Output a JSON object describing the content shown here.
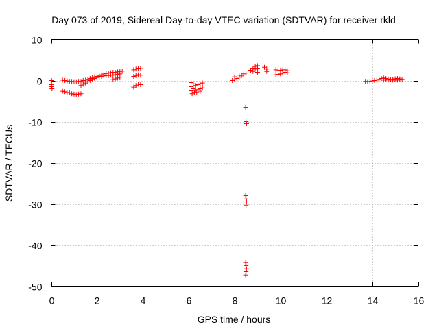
{
  "chart_data": {
    "type": "scatter",
    "title": "Day 073 of 2019, Sidereal Day-to-day VTEC variation (SDTVAR) for receiver rkld",
    "xlabel": "GPS time / hours",
    "ylabel": "SDTVAR / TECUs",
    "xlim": [
      0,
      16
    ],
    "ylim": [
      -50,
      10
    ],
    "xticks": [
      0,
      2,
      4,
      6,
      8,
      10,
      12,
      14,
      16
    ],
    "xtick_labels": [
      "0",
      "2",
      "4",
      "6",
      "8",
      "10",
      "12",
      "14",
      "16"
    ],
    "yticks": [
      10,
      0,
      -10,
      -20,
      -30,
      -40,
      -50
    ],
    "ytick_labels": [
      "10",
      "0",
      "-10",
      "-20",
      "-30",
      "-40",
      "-50"
    ],
    "grid": true,
    "marker": "plus",
    "color": "#ff0000",
    "series": [
      {
        "name": "SDTVAR",
        "points": [
          [
            0.02,
            0.0
          ],
          [
            0.02,
            -1.0
          ],
          [
            0.02,
            -1.5
          ],
          [
            0.04,
            -2.0
          ],
          [
            0.5,
            0.1
          ],
          [
            0.6,
            0.0
          ],
          [
            0.7,
            -0.1
          ],
          [
            0.8,
            -0.2
          ],
          [
            0.9,
            -0.2
          ],
          [
            1.0,
            -0.3
          ],
          [
            1.1,
            -0.3
          ],
          [
            1.2,
            -0.2
          ],
          [
            1.3,
            -0.2
          ],
          [
            1.4,
            0.0
          ],
          [
            1.5,
            0.1
          ],
          [
            1.6,
            0.3
          ],
          [
            1.7,
            0.5
          ],
          [
            1.8,
            0.7
          ],
          [
            1.9,
            0.9
          ],
          [
            2.0,
            1.0
          ],
          [
            2.1,
            1.2
          ],
          [
            2.2,
            1.4
          ],
          [
            2.3,
            1.6
          ],
          [
            2.4,
            1.7
          ],
          [
            2.5,
            1.8
          ],
          [
            2.6,
            1.9
          ],
          [
            2.7,
            2.0
          ],
          [
            2.8,
            2.0
          ],
          [
            2.9,
            2.1
          ],
          [
            3.0,
            2.2
          ],
          [
            3.1,
            2.3
          ],
          [
            0.5,
            -2.6
          ],
          [
            0.6,
            -2.7
          ],
          [
            0.7,
            -2.9
          ],
          [
            0.8,
            -3.0
          ],
          [
            0.9,
            -3.2
          ],
          [
            1.0,
            -3.3
          ],
          [
            1.1,
            -3.4
          ],
          [
            1.2,
            -3.3
          ],
          [
            1.3,
            -3.2
          ],
          [
            1.3,
            -1.2
          ],
          [
            1.4,
            -0.9
          ],
          [
            1.5,
            -0.6
          ],
          [
            1.6,
            -0.3
          ],
          [
            1.7,
            0.0
          ],
          [
            1.8,
            0.3
          ],
          [
            1.9,
            0.5
          ],
          [
            2.0,
            0.7
          ],
          [
            2.1,
            0.9
          ],
          [
            2.2,
            1.0
          ],
          [
            2.3,
            1.1
          ],
          [
            2.4,
            1.2
          ],
          [
            2.5,
            1.2
          ],
          [
            2.6,
            1.3
          ],
          [
            2.7,
            1.3
          ],
          [
            2.8,
            1.4
          ],
          [
            2.9,
            1.5
          ],
          [
            3.0,
            1.6
          ],
          [
            2.7,
            0.2
          ],
          [
            2.8,
            0.4
          ],
          [
            2.9,
            0.6
          ],
          [
            3.0,
            0.8
          ],
          [
            3.6,
            2.6
          ],
          [
            3.7,
            2.8
          ],
          [
            3.8,
            3.0
          ],
          [
            3.9,
            2.9
          ],
          [
            3.6,
            1.0
          ],
          [
            3.7,
            1.2
          ],
          [
            3.8,
            1.4
          ],
          [
            3.9,
            1.3
          ],
          [
            3.6,
            -1.6
          ],
          [
            3.7,
            -1.2
          ],
          [
            3.8,
            -0.9
          ],
          [
            3.9,
            -1.0
          ],
          [
            6.1,
            -0.5
          ],
          [
            6.1,
            -1.5
          ],
          [
            6.1,
            -2.5
          ],
          [
            6.15,
            -3.2
          ],
          [
            6.2,
            -0.8
          ],
          [
            6.3,
            -1.2
          ],
          [
            6.4,
            -1.0
          ],
          [
            6.5,
            -0.8
          ],
          [
            6.6,
            -0.6
          ],
          [
            6.2,
            -2.0
          ],
          [
            6.3,
            -2.4
          ],
          [
            6.4,
            -2.2
          ],
          [
            6.5,
            -2.0
          ],
          [
            6.6,
            -1.8
          ],
          [
            6.25,
            -2.8
          ],
          [
            6.35,
            -2.9
          ],
          [
            6.5,
            -2.6
          ],
          [
            7.9,
            0.0
          ],
          [
            8.0,
            0.2
          ],
          [
            8.1,
            0.5
          ],
          [
            8.2,
            0.8
          ],
          [
            8.3,
            1.1
          ],
          [
            8.4,
            1.4
          ],
          [
            8.5,
            1.8
          ],
          [
            8.0,
            0.9
          ],
          [
            8.2,
            1.3
          ],
          [
            8.4,
            1.7
          ],
          [
            8.7,
            2.5
          ],
          [
            8.8,
            3.0
          ],
          [
            8.9,
            3.4
          ],
          [
            9.0,
            3.6
          ],
          [
            8.8,
            2.2
          ],
          [
            8.9,
            2.8
          ],
          [
            9.0,
            3.0
          ],
          [
            9.0,
            2.0
          ],
          [
            9.3,
            3.2
          ],
          [
            9.4,
            2.8
          ],
          [
            9.4,
            2.2
          ],
          [
            9.8,
            2.6
          ],
          [
            9.9,
            2.4
          ],
          [
            10.0,
            2.5
          ],
          [
            10.1,
            2.6
          ],
          [
            10.2,
            2.6
          ],
          [
            10.3,
            2.4
          ],
          [
            9.8,
            1.4
          ],
          [
            9.9,
            1.5
          ],
          [
            10.0,
            1.6
          ],
          [
            10.1,
            1.8
          ],
          [
            10.2,
            2.0
          ],
          [
            10.3,
            1.9
          ],
          [
            8.48,
            -6.5
          ],
          [
            8.5,
            -10.0
          ],
          [
            8.52,
            -10.5
          ],
          [
            8.48,
            -28.0
          ],
          [
            8.5,
            -28.8
          ],
          [
            8.52,
            -29.5
          ],
          [
            8.5,
            -30.3
          ],
          [
            8.48,
            -44.2
          ],
          [
            8.5,
            -45.0
          ],
          [
            8.52,
            -45.8
          ],
          [
            8.5,
            -46.5
          ],
          [
            8.48,
            -47.3
          ],
          [
            13.7,
            -0.2
          ],
          [
            13.8,
            -0.3
          ],
          [
            13.9,
            -0.2
          ],
          [
            14.0,
            -0.1
          ],
          [
            14.1,
            0.0
          ],
          [
            14.2,
            0.1
          ],
          [
            14.3,
            0.3
          ],
          [
            14.4,
            0.5
          ],
          [
            14.5,
            0.6
          ],
          [
            14.6,
            0.5
          ],
          [
            14.7,
            0.4
          ],
          [
            14.8,
            0.3
          ],
          [
            14.9,
            0.3
          ],
          [
            15.0,
            0.4
          ],
          [
            15.1,
            0.5
          ],
          [
            15.2,
            0.4
          ],
          [
            15.3,
            0.3
          ],
          [
            14.5,
            0.1
          ],
          [
            14.6,
            0.2
          ],
          [
            14.7,
            0.1
          ],
          [
            14.8,
            0.2
          ],
          [
            14.9,
            0.1
          ],
          [
            15.0,
            0.2
          ],
          [
            15.1,
            0.1
          ],
          [
            15.2,
            0.2
          ]
        ]
      }
    ]
  }
}
